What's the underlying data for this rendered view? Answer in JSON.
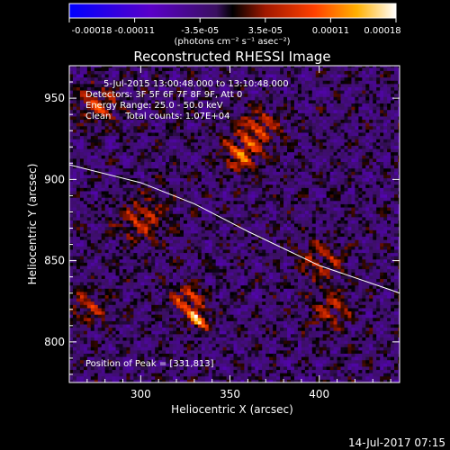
{
  "chart_data": {
    "type": "heatmap",
    "title": "Reconstructed RHESSI Image",
    "xlabel": "Heliocentric X (arcsec)",
    "ylabel": "Heliocentric Y (arcsec)",
    "xlim": [
      260,
      445
    ],
    "ylim": [
      775,
      970
    ],
    "xticks": [
      300,
      350,
      400
    ],
    "yticks": [
      800,
      850,
      900,
      950
    ],
    "colorbar": {
      "ticks": [
        "-0.00018",
        "-0.00011",
        "-3.5e-05",
        "3.5e-05",
        "0.00011",
        "0.00018"
      ],
      "range": [
        -0.00018,
        0.00018
      ],
      "unit_line": "(photons cm⁻² s⁻¹ asec⁻²)"
    },
    "annotations": {
      "time": "5-Jul-2015 13:00:48.000 to 13:10:48.000",
      "detectors": "Detectors: 3F 5F 6F 7F 8F 9F, Att 0",
      "energy": "Energy Range: 25.0 - 50.0 keV",
      "clean": "Clean     Total counts: 1.07E+04",
      "peak": "Position of Peak = [331,813]"
    },
    "peak": [
      331,
      813
    ],
    "limb": [
      [
        260,
        909
      ],
      [
        300,
        898
      ],
      [
        330,
        885
      ],
      [
        360,
        868
      ],
      [
        400,
        847
      ],
      [
        440,
        832
      ],
      [
        445,
        830
      ]
    ],
    "sources": [
      {
        "x": 331,
        "y": 813,
        "amp": 1.0,
        "r": 6
      },
      {
        "x": 325,
        "y": 825,
        "amp": 0.7,
        "r": 9
      },
      {
        "x": 355,
        "y": 915,
        "amp": 0.75,
        "r": 10
      },
      {
        "x": 365,
        "y": 930,
        "amp": 0.6,
        "r": 12
      },
      {
        "x": 275,
        "y": 945,
        "amp": 0.55,
        "r": 12
      },
      {
        "x": 300,
        "y": 875,
        "amp": 0.5,
        "r": 14
      },
      {
        "x": 400,
        "y": 850,
        "amp": 0.5,
        "r": 12
      },
      {
        "x": 405,
        "y": 820,
        "amp": 0.45,
        "r": 12
      },
      {
        "x": 270,
        "y": 820,
        "amp": 0.45,
        "r": 10
      }
    ],
    "footer": "14-Jul-2017 07:15"
  }
}
